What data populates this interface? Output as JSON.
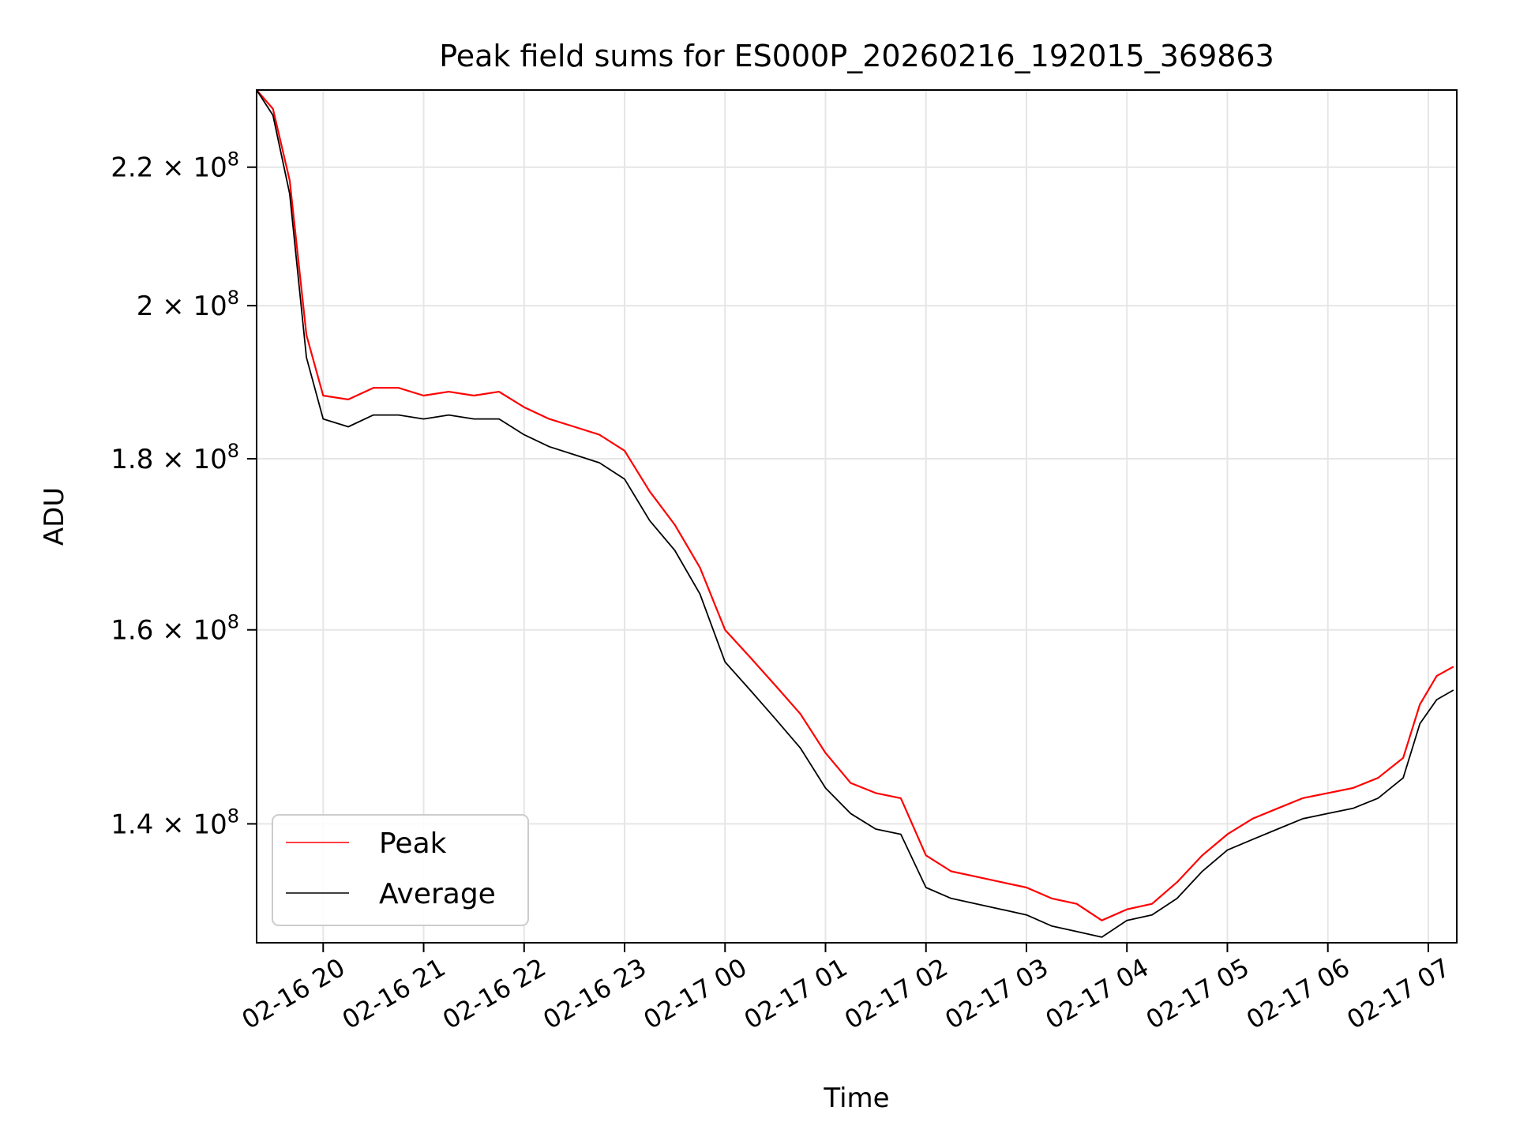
{
  "chart_data": {
    "type": "line",
    "title": "Peak field sums for ES000P_20260216_192015_369863",
    "xlabel": "Time",
    "ylabel": "ADU",
    "yscale": "log",
    "ylim": [
      129000000,
      232000000
    ],
    "xlim": [
      "2026-02-16 19:20:15",
      "2026-02-17 07:17:00"
    ],
    "grid": true,
    "legend_position": "lower-left",
    "x_ticks": [
      "02-16 20",
      "02-16 21",
      "02-16 22",
      "02-16 23",
      "02-17 00",
      "02-17 01",
      "02-17 02",
      "02-17 03",
      "02-17 04",
      "02-17 05",
      "02-17 06",
      "02-17 07"
    ],
    "y_ticks": [
      {
        "value": 140000000,
        "mantissa": "1.4",
        "exponent": "8"
      },
      {
        "value": 160000000,
        "mantissa": "1.6",
        "exponent": "8"
      },
      {
        "value": 180000000,
        "mantissa": "1.8",
        "exponent": "8"
      },
      {
        "value": 200000000,
        "mantissa": "2",
        "exponent": "8"
      },
      {
        "value": 220000000,
        "mantissa": "2.2",
        "exponent": "8"
      }
    ],
    "series": [
      {
        "name": "Peak",
        "color": "#ff0000",
        "x": [
          "2026-02-16 19:20",
          "2026-02-16 19:30",
          "2026-02-16 19:40",
          "2026-02-16 19:50",
          "2026-02-16 20:00",
          "2026-02-16 20:15",
          "2026-02-16 20:30",
          "2026-02-16 20:45",
          "2026-02-16 21:00",
          "2026-02-16 21:15",
          "2026-02-16 21:30",
          "2026-02-16 21:45",
          "2026-02-16 22:00",
          "2026-02-16 22:15",
          "2026-02-16 22:30",
          "2026-02-16 22:45",
          "2026-02-16 23:00",
          "2026-02-16 23:15",
          "2026-02-16 23:30",
          "2026-02-16 23:45",
          "2026-02-17 00:00",
          "2026-02-17 00:15",
          "2026-02-17 00:30",
          "2026-02-17 00:45",
          "2026-02-17 01:00",
          "2026-02-17 01:15",
          "2026-02-17 01:30",
          "2026-02-17 01:45",
          "2026-02-17 02:00",
          "2026-02-17 02:15",
          "2026-02-17 02:30",
          "2026-02-17 02:45",
          "2026-02-17 03:00",
          "2026-02-17 03:15",
          "2026-02-17 03:30",
          "2026-02-17 03:45",
          "2026-02-17 04:00",
          "2026-02-17 04:15",
          "2026-02-17 04:30",
          "2026-02-17 04:45",
          "2026-02-17 05:00",
          "2026-02-17 05:15",
          "2026-02-17 05:30",
          "2026-02-17 05:45",
          "2026-02-17 06:00",
          "2026-02-17 06:15",
          "2026-02-17 06:30",
          "2026-02-17 06:45",
          "2026-02-17 06:55",
          "2026-02-17 07:05",
          "2026-02-17 07:15"
        ],
        "y": [
          232000000,
          229000000,
          218000000,
          196000000,
          188000000,
          187500000,
          189000000,
          189000000,
          188000000,
          188500000,
          188000000,
          188500000,
          186500000,
          185000000,
          184000000,
          183000000,
          181000000,
          176000000,
          172000000,
          167000000,
          160000000,
          157000000,
          154000000,
          151000000,
          147000000,
          144000000,
          143000000,
          142500000,
          137000000,
          135500000,
          135000000,
          134500000,
          134000000,
          133000000,
          132500000,
          131000000,
          132000000,
          132500000,
          134500000,
          137000000,
          139000000,
          140500000,
          141500000,
          142500000,
          143000000,
          143500000,
          144500000,
          146500000,
          152000000,
          155000000,
          156000000
        ]
      },
      {
        "name": "Average",
        "color": "#000000",
        "x": [
          "2026-02-16 19:20",
          "2026-02-16 19:30",
          "2026-02-16 19:40",
          "2026-02-16 19:50",
          "2026-02-16 20:00",
          "2026-02-16 20:15",
          "2026-02-16 20:30",
          "2026-02-16 20:45",
          "2026-02-16 21:00",
          "2026-02-16 21:15",
          "2026-02-16 21:30",
          "2026-02-16 21:45",
          "2026-02-16 22:00",
          "2026-02-16 22:15",
          "2026-02-16 22:30",
          "2026-02-16 22:45",
          "2026-02-16 23:00",
          "2026-02-16 23:15",
          "2026-02-16 23:30",
          "2026-02-16 23:45",
          "2026-02-17 00:00",
          "2026-02-17 00:15",
          "2026-02-17 00:30",
          "2026-02-17 00:45",
          "2026-02-17 01:00",
          "2026-02-17 01:15",
          "2026-02-17 01:30",
          "2026-02-17 01:45",
          "2026-02-17 02:00",
          "2026-02-17 02:15",
          "2026-02-17 02:30",
          "2026-02-17 02:45",
          "2026-02-17 03:00",
          "2026-02-17 03:15",
          "2026-02-17 03:30",
          "2026-02-17 03:45",
          "2026-02-17 04:00",
          "2026-02-17 04:15",
          "2026-02-17 04:30",
          "2026-02-17 04:45",
          "2026-02-17 05:00",
          "2026-02-17 05:15",
          "2026-02-17 05:30",
          "2026-02-17 05:45",
          "2026-02-17 06:00",
          "2026-02-17 06:15",
          "2026-02-17 06:30",
          "2026-02-17 06:45",
          "2026-02-17 06:55",
          "2026-02-17 07:05",
          "2026-02-17 07:15"
        ],
        "y": [
          232000000,
          228000000,
          216000000,
          193000000,
          185000000,
          184000000,
          185500000,
          185500000,
          185000000,
          185500000,
          185000000,
          185000000,
          183000000,
          181500000,
          180500000,
          179500000,
          177500000,
          172500000,
          169000000,
          164000000,
          156500000,
          153500000,
          150500000,
          147500000,
          143500000,
          141000000,
          139500000,
          139000000,
          134000000,
          133000000,
          132500000,
          132000000,
          131500000,
          130500000,
          130000000,
          129500000,
          131000000,
          131500000,
          133000000,
          135500000,
          137500000,
          138500000,
          139500000,
          140500000,
          141000000,
          141500000,
          142500000,
          144500000,
          150000000,
          152500000,
          153500000
        ]
      }
    ]
  }
}
